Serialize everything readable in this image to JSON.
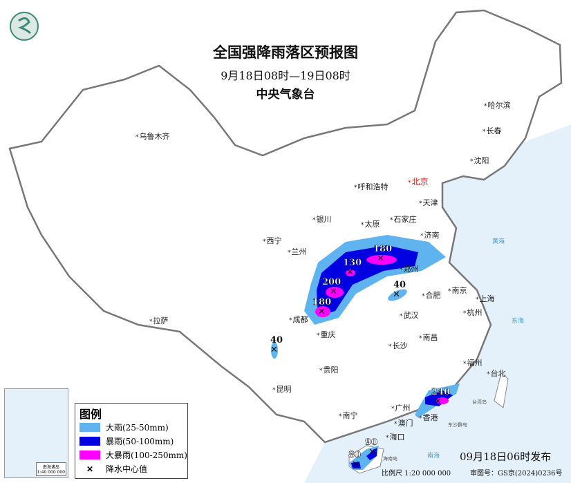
{
  "title": "全国强降雨落区预报图",
  "period": "9月18日08时—19日08时",
  "issuer": "中央气象台",
  "release": "09月18日06时发布",
  "scale": "比例尺 1:20 000 000",
  "map_approval": "审图号：GS京(2024)0236号",
  "colors": {
    "heavy_rain": "#5fb4f0",
    "rainstorm": "#0000e0",
    "heavy_rainstorm": "#ff00ff",
    "sea": "#e4f1fa",
    "capital": "#d01010"
  },
  "legend": {
    "title": "图例",
    "items": [
      {
        "label": "大雨(25-50mm)",
        "color": "#5fb4f0"
      },
      {
        "label": "暴雨(50-100mm)",
        "color": "#0000e0"
      },
      {
        "label": "大暴雨(100-250mm)",
        "color": "#ff00ff"
      },
      {
        "label": "降水中心值",
        "icon": "x-mark"
      }
    ]
  },
  "cities": [
    "乌鲁木齐",
    "哈尔滨",
    "长春",
    "沈阳",
    "北京",
    "天津",
    "呼和浩特",
    "石家庄",
    "太原",
    "银川",
    "济南",
    "西宁",
    "兰州",
    "郑州",
    "合肥",
    "南京",
    "上海",
    "杭州",
    "武汉",
    "成都",
    "重庆",
    "长沙",
    "南昌",
    "拉萨",
    "贵阳",
    "昆明",
    "福州",
    "台北",
    "南宁",
    "广州",
    "澳门",
    "香港",
    "海口"
  ],
  "seas": [
    "黄海",
    "东海",
    "南海",
    "台湾岛",
    "东沙群岛",
    "海南岛"
  ],
  "rain_centers": [
    {
      "value": "180"
    },
    {
      "value": "130"
    },
    {
      "value": "200"
    },
    {
      "value": "180"
    },
    {
      "value": "40"
    },
    {
      "value": "40"
    },
    {
      "value": "240"
    },
    {
      "value": "90"
    },
    {
      "value": "80"
    }
  ],
  "inset": {
    "label": "南海诸岛",
    "scale": "1:40 000 000"
  }
}
